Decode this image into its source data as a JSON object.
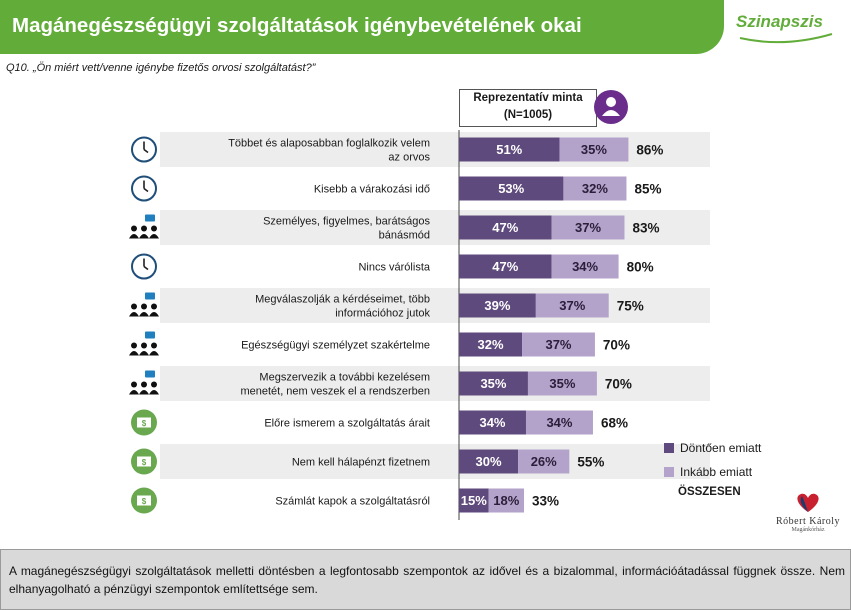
{
  "header": {
    "title": "Magánegészségügyi szolgáltatások igénybevételének okai",
    "logo": "Szinapszis",
    "brand_color": "#62ad3a"
  },
  "question": "Q10. „Ön miért vett/venne igénybe fizetős orvosi szolgáltatást?”",
  "sample_box": {
    "line1": "Reprezentatív minta",
    "line2": "(N=1005)",
    "icon": "people-icon"
  },
  "chart_data": {
    "type": "bar",
    "orientation": "horizontal",
    "stacked": true,
    "categories": [
      "Többet és alaposabban foglalkozik velem az orvos",
      "Kisebb a várakozási idő",
      "Személyes, figyelmes, barátságos bánásmód",
      "Nincs várólista",
      "Megválaszolják a kérdéseimet, több információhoz jutok",
      "Egészségügyi személyzet szakértelme",
      "Megszervezik a további kezelésem menetét, nem veszek el a rendszerben",
      "Előre ismerem a szolgáltatás árait",
      "Nem kell hálapénzt fizetnem",
      "Számlát kapok a szolgáltatásról"
    ],
    "category_icons": [
      "clock-icon",
      "clock-icon",
      "people-chat-icon",
      "clock-icon",
      "people-chat-icon",
      "people-chat-icon",
      "people-chat-icon",
      "money-icon",
      "money-icon",
      "money-icon"
    ],
    "series": [
      {
        "name": "Döntően emiatt",
        "color": "#5e4a7c",
        "values": [
          51,
          53,
          47,
          47,
          39,
          32,
          35,
          34,
          30,
          15
        ]
      },
      {
        "name": "Inkább emiatt",
        "color": "#b3a2c9",
        "values": [
          35,
          32,
          37,
          34,
          37,
          37,
          35,
          34,
          26,
          18
        ]
      }
    ],
    "totals": [
      86,
      85,
      83,
      80,
      75,
      70,
      70,
      68,
      55,
      33
    ],
    "total_label": "ÖSSZESEN",
    "value_suffix": "%",
    "xlim": [
      0,
      100
    ],
    "legend_position": "right"
  },
  "rk_logo": {
    "name": "Róbert Károly",
    "sub": "Magánkórház"
  },
  "footer": {
    "text": "A magánegészségügyi szolgáltatások melletti döntésben a legfontosabb szempontok az idővel és a bizalommal, információátadással függnek össze. Nem elhanyagolható a pénzügyi szempontok említettsége sem."
  }
}
